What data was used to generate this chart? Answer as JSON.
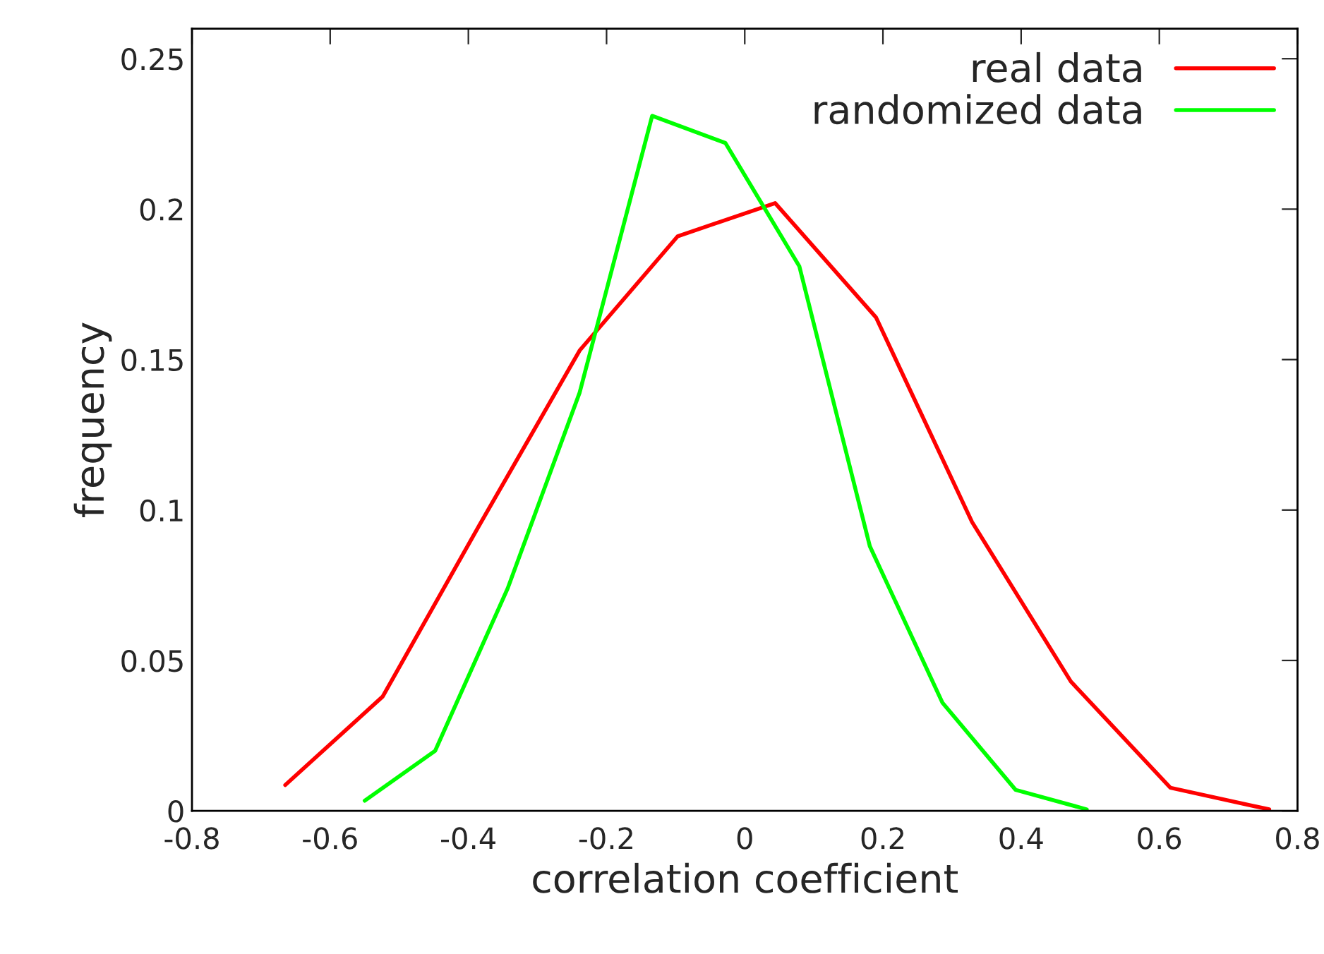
{
  "chart_data": {
    "type": "line",
    "xlabel": "correlation coefficient",
    "ylabel": "frequency",
    "xlim": [
      -0.8,
      0.8
    ],
    "xticks": [
      -0.8,
      -0.6,
      -0.4,
      -0.2,
      0,
      0.2,
      0.4,
      0.6,
      0.8
    ],
    "ylim": [
      0,
      0.26
    ],
    "yticks": [
      0,
      0.05,
      0.1,
      0.15,
      0.2,
      0.25
    ],
    "grid": false,
    "legend": "top right",
    "marker": "none",
    "line_style": "solid",
    "series": [
      {
        "name": "real data",
        "color": "#ff0000",
        "x": [
          -0.665,
          -0.524,
          -0.384,
          -0.239,
          -0.097,
          0.044,
          0.19,
          0.329,
          0.472,
          0.616,
          0.759
        ],
        "values": [
          0.0086,
          0.038,
          0.095,
          0.153,
          0.191,
          0.202,
          0.164,
          0.096,
          0.043,
          0.0077,
          0.0005
        ]
      },
      {
        "name": "randomized data",
        "color": "#00ff00",
        "x": [
          -0.55,
          -0.448,
          -0.343,
          -0.239,
          -0.134,
          -0.028,
          0.079,
          0.181,
          0.286,
          0.392,
          0.495
        ],
        "values": [
          0.0034,
          0.02,
          0.074,
          0.139,
          0.231,
          0.222,
          0.181,
          0.088,
          0.036,
          0.007,
          0.0005
        ]
      }
    ]
  }
}
